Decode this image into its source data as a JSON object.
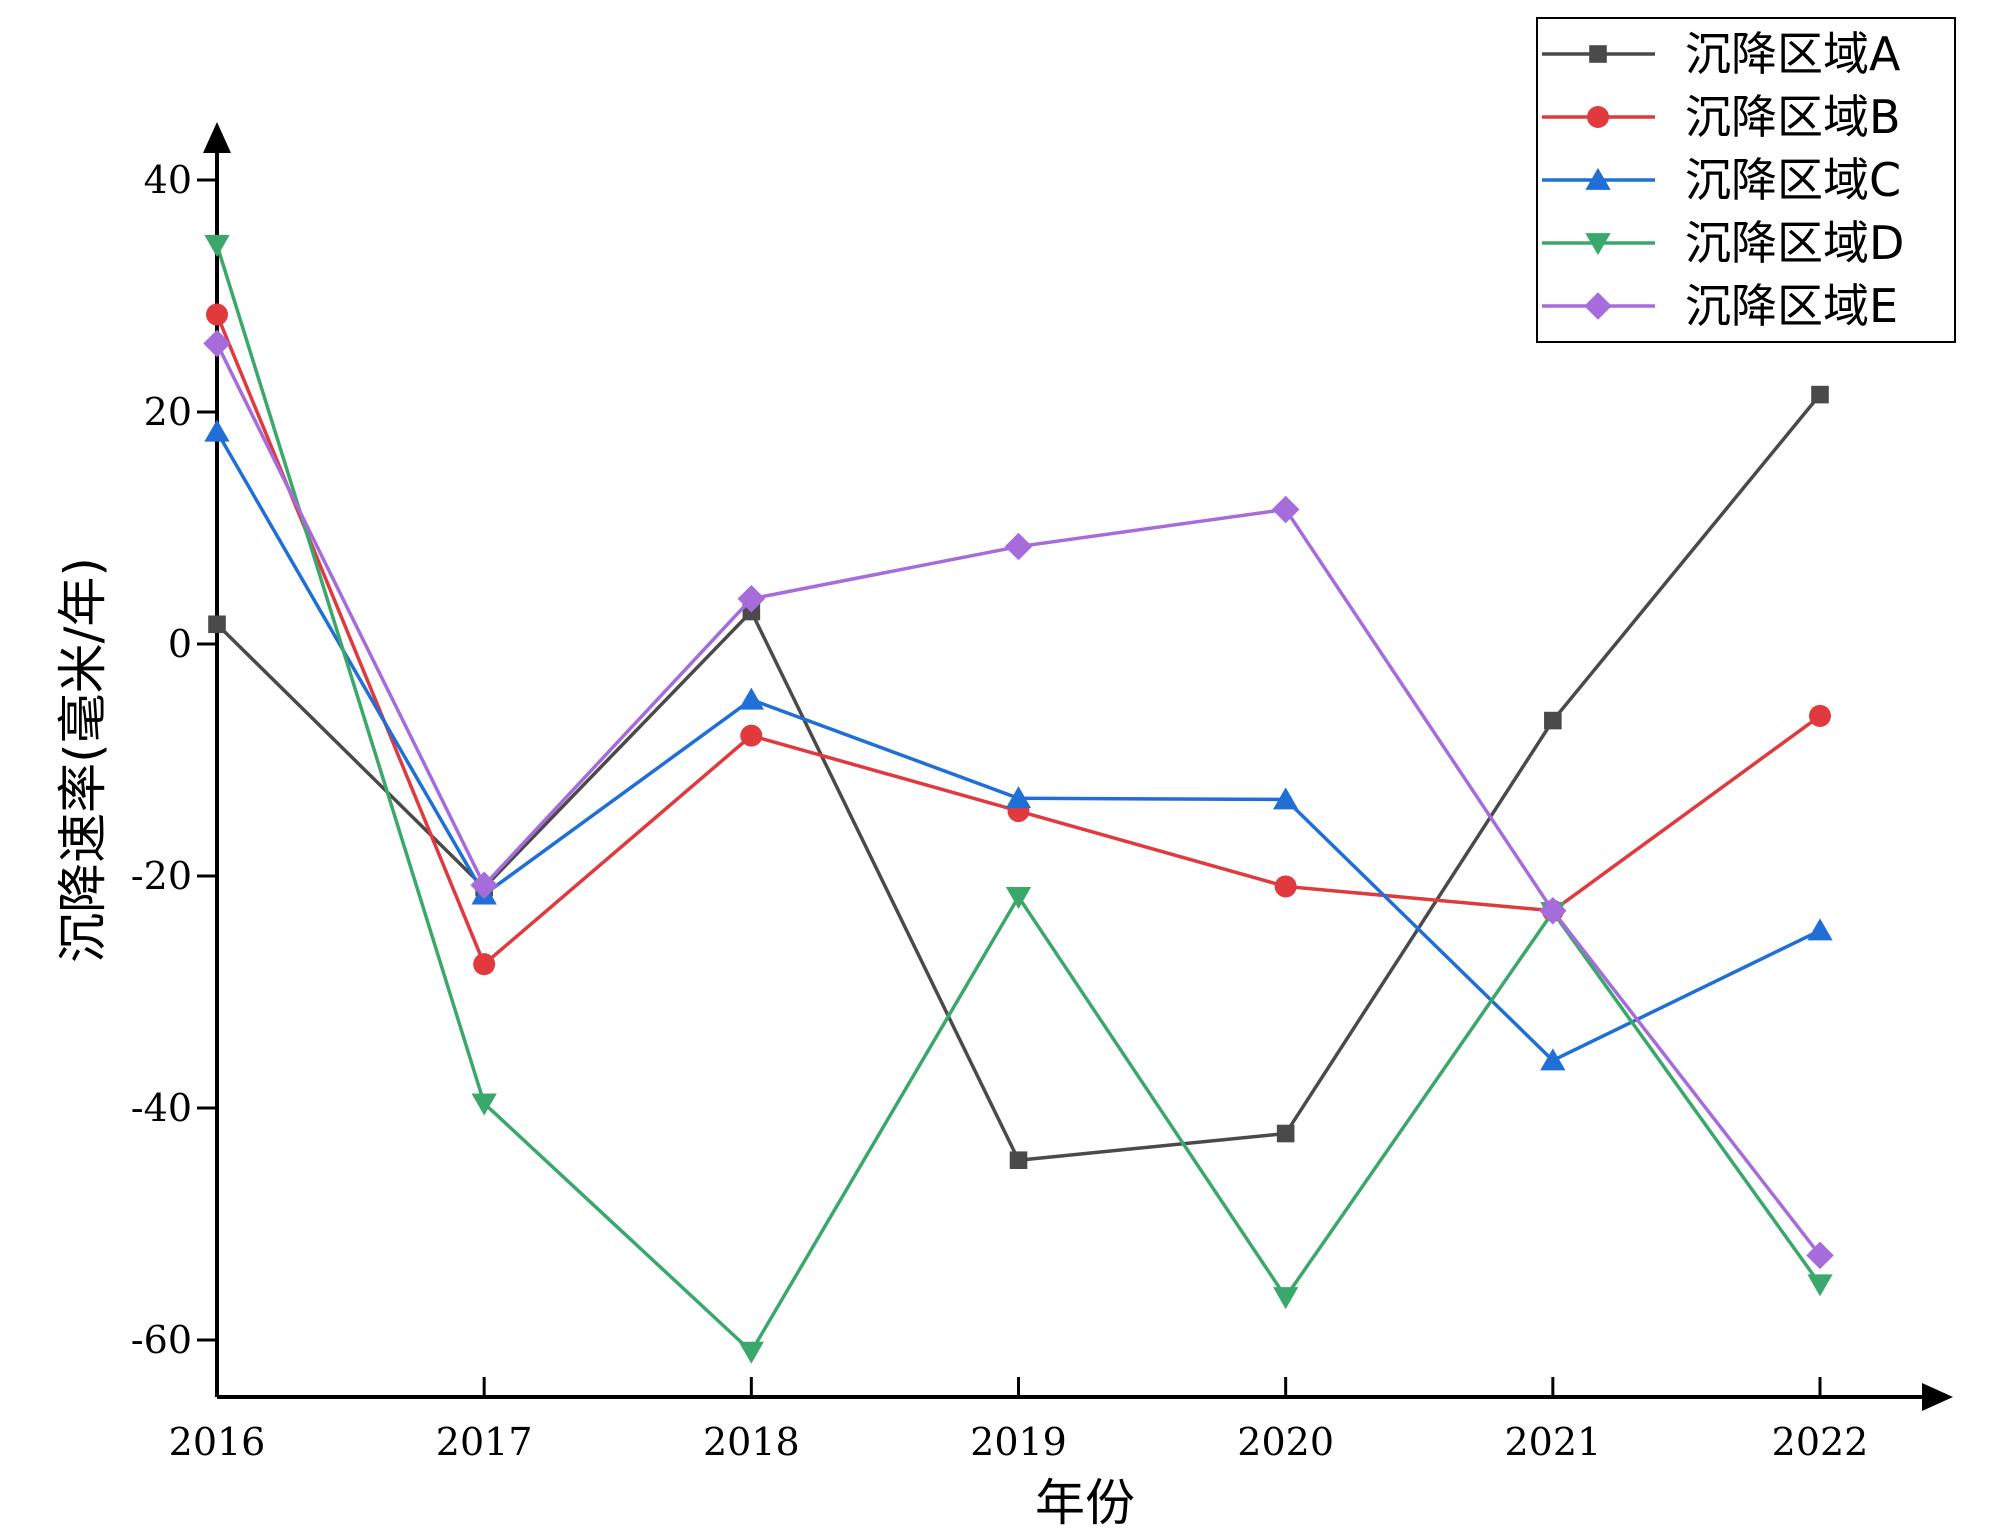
{
  "chart_data": {
    "type": "line",
    "title": "",
    "xlabel": "年份",
    "ylabel": "沉降速率(毫米/年)",
    "categories": [
      "2016",
      "2017",
      "2018",
      "2019",
      "2020",
      "2021",
      "2022"
    ],
    "ylim": [
      -65,
      45
    ],
    "yticks": [
      40,
      20,
      0,
      -20,
      -40,
      -60
    ],
    "ytick_labels": [
      "40",
      "20",
      "0",
      "-20",
      "-40",
      "-60"
    ],
    "grid": false,
    "legend_position": "top-right",
    "series": [
      {
        "name": "沉降区域A",
        "color": "#4a4a4a",
        "marker": "square",
        "values": [
          1.7,
          -21.0,
          2.8,
          -44.5,
          -42.2,
          -6.6,
          21.5
        ]
      },
      {
        "name": "沉降区域B",
        "color": "#e0393e",
        "marker": "circle",
        "values": [
          28.4,
          -27.6,
          -7.9,
          -14.4,
          -20.9,
          -23.0,
          -6.2
        ]
      },
      {
        "name": "沉降区域C",
        "color": "#1f6fd6",
        "marker": "triangle-up",
        "values": [
          18.3,
          -21.6,
          -4.8,
          -13.3,
          -13.4,
          -35.9,
          -24.7
        ]
      },
      {
        "name": "沉降区域D",
        "color": "#3aa86b",
        "marker": "triangle-down",
        "values": [
          34.4,
          -39.6,
          -61.0,
          -21.8,
          -56.3,
          -23.1,
          -55.2
        ]
      },
      {
        "name": "沉降区域E",
        "color": "#a66cdb",
        "marker": "diamond",
        "values": [
          25.9,
          -20.8,
          3.9,
          8.4,
          11.6,
          -23.0,
          -52.7
        ]
      }
    ]
  }
}
